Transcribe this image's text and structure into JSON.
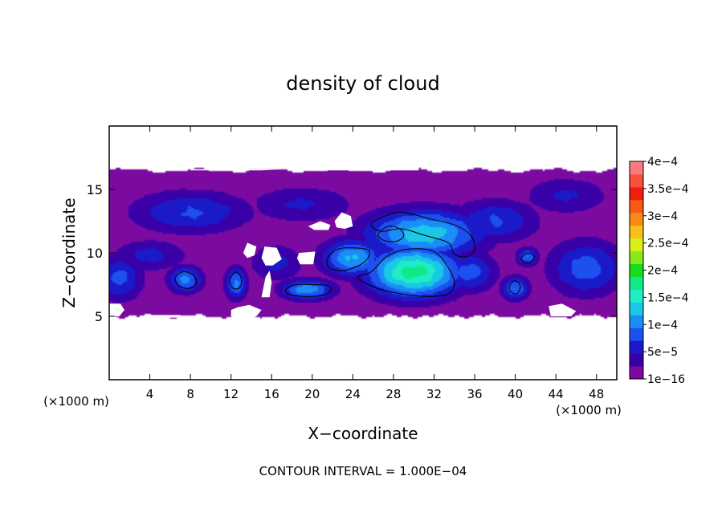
{
  "chart_data": {
    "type": "heatmap",
    "title": "density of cloud",
    "xlabel": "X−coordinate",
    "ylabel": "Z−coordinate",
    "x_unit": "(×1000 m)",
    "x_unit_left": "(×1000 m)",
    "x_unit_right": "(×1000 m)",
    "xlim": [
      0,
      50
    ],
    "ylim": [
      0,
      20
    ],
    "x_ticks": [
      4,
      8,
      12,
      16,
      20,
      24,
      28,
      32,
      36,
      40,
      44,
      48
    ],
    "y_ticks": [
      5,
      10,
      15
    ],
    "footer": "CONTOUR INTERVAL = 1.000E−04",
    "contour_interval": 0.0001,
    "colorbar": {
      "levels": [
        1e-16,
        2.5e-05,
        5e-05,
        7.5e-05,
        0.0001,
        0.000125,
        0.00015,
        0.000175,
        0.0002,
        0.000225,
        0.00025,
        0.000275,
        0.0003,
        0.000325,
        0.00035,
        0.000375,
        0.0004
      ],
      "colors": [
        "#7a0aa0",
        "#3a00a8",
        "#1a1ac8",
        "#1e50ef",
        "#1a8ef6",
        "#1ac8e6",
        "#20ecc6",
        "#10ea86",
        "#1adc1a",
        "#88e81a",
        "#d8f018",
        "#f8c018",
        "#f88a18",
        "#f85a14",
        "#f01e10",
        "#f8503c",
        "#f87c7c"
      ],
      "labels": [
        {
          "value": 1e-16,
          "text": "1e−16"
        },
        {
          "value": 5e-05,
          "text": "5e−5"
        },
        {
          "value": 0.0001,
          "text": "1e−4"
        },
        {
          "value": 0.00015,
          "text": "1.5e−4"
        },
        {
          "value": 0.0002,
          "text": "2e−4"
        },
        {
          "value": 0.00025,
          "text": "2.5e−4"
        },
        {
          "value": 0.0003,
          "text": "3e−4"
        },
        {
          "value": 0.00035,
          "text": "3.5e−4"
        },
        {
          "value": 0.0004,
          "text": "4e−4"
        }
      ]
    },
    "cloud_layer_z": [
      5,
      16.5
    ],
    "features": [
      {
        "x": 30,
        "z": 8.5,
        "rx": 4.4,
        "rz": 1.9,
        "peak": 0.00019
      },
      {
        "x": 31,
        "z": 11.5,
        "rx": 5.5,
        "rz": 1.8,
        "peak": 0.000145
      },
      {
        "x": 24,
        "z": 9.6,
        "rx": 2.9,
        "rz": 1.4,
        "peak": 0.00013
      },
      {
        "x": 7.5,
        "z": 7.9,
        "rx": 1.6,
        "rz": 1.0,
        "peak": 0.00011
      },
      {
        "x": 12.5,
        "z": 7.6,
        "rx": 1.0,
        "rz": 1.2,
        "peak": 0.00011
      },
      {
        "x": 19.5,
        "z": 7.1,
        "rx": 2.5,
        "rz": 0.8,
        "peak": 0.00012
      },
      {
        "x": 40,
        "z": 7.2,
        "rx": 1.3,
        "rz": 0.9,
        "peak": 0.000105
      },
      {
        "x": 41.2,
        "z": 9.7,
        "rx": 1.0,
        "rz": 0.7,
        "peak": 0.0001
      },
      {
        "x": 1,
        "z": 8,
        "rx": 2.2,
        "rz": 1.7,
        "peak": 8.5e-05
      },
      {
        "x": 47,
        "z": 8.8,
        "rx": 3.5,
        "rz": 2.1,
        "peak": 9e-05
      },
      {
        "x": 8,
        "z": 13.2,
        "rx": 5.5,
        "rz": 1.6,
        "peak": 8e-05
      },
      {
        "x": 38,
        "z": 12.5,
        "rx": 4.0,
        "rz": 1.6,
        "peak": 8e-05
      },
      {
        "x": 19,
        "z": 13.8,
        "rx": 5.0,
        "rz": 1.4,
        "peak": 5.5e-05
      },
      {
        "x": 45,
        "z": 14.5,
        "rx": 4.0,
        "rz": 1.4,
        "peak": 5.5e-05
      },
      {
        "x": 4,
        "z": 9.8,
        "rx": 3.5,
        "rz": 1.2,
        "peak": 6e-05
      },
      {
        "x": 35.5,
        "z": 8.5,
        "rx": 2.5,
        "rz": 1.5,
        "peak": 9e-05
      },
      {
        "x": 16.5,
        "z": 9.2,
        "rx": 2.5,
        "rz": 1.4,
        "peak": 6e-05
      }
    ],
    "contours": [
      {
        "level": 0.0001,
        "points": [
          [
            26.2,
            8.8
          ],
          [
            27.5,
            9.8
          ],
          [
            29.5,
            10.3
          ],
          [
            32.0,
            10.1
          ],
          [
            33.5,
            8.7
          ],
          [
            34.0,
            7.5
          ],
          [
            33.2,
            6.7
          ],
          [
            30.5,
            6.6
          ],
          [
            27.3,
            7.0
          ],
          [
            25.5,
            7.5
          ],
          [
            24.5,
            8.1
          ],
          [
            25.6,
            8.4
          ]
        ]
      },
      {
        "level": 0.0001,
        "points": [
          [
            25.8,
            12.3
          ],
          [
            27.5,
            13.0
          ],
          [
            29.0,
            13.2
          ],
          [
            31.5,
            12.7
          ],
          [
            34.0,
            12.2
          ],
          [
            35.6,
            11.4
          ],
          [
            36.0,
            10.3
          ],
          [
            35.2,
            9.7
          ],
          [
            34.0,
            9.9
          ],
          [
            33.4,
            10.8
          ],
          [
            31.0,
            11.4
          ],
          [
            28.8,
            11.9
          ],
          [
            26.8,
            11.7
          ]
        ]
      },
      {
        "level": 0.0001,
        "points": [
          [
            26.5,
            11.5
          ],
          [
            27.5,
            12.1
          ],
          [
            28.6,
            11.9
          ],
          [
            29.0,
            11.3
          ],
          [
            28.2,
            10.9
          ],
          [
            27.0,
            11.0
          ]
        ]
      },
      {
        "level": 0.0001,
        "points": [
          [
            21.5,
            9.6
          ],
          [
            22.5,
            10.3
          ],
          [
            24.0,
            10.4
          ],
          [
            25.6,
            10.2
          ],
          [
            25.3,
            9.4
          ],
          [
            24.0,
            8.8
          ],
          [
            22.6,
            8.6
          ],
          [
            21.6,
            8.9
          ]
        ]
      },
      {
        "level": 0.0001,
        "points": [
          [
            6.5,
            8.0
          ],
          [
            7.2,
            8.5
          ],
          [
            8.2,
            8.3
          ],
          [
            8.6,
            7.6
          ],
          [
            7.8,
            7.2
          ],
          [
            6.9,
            7.4
          ]
        ]
      },
      {
        "level": 0.0001,
        "points": [
          [
            11.9,
            7.9
          ],
          [
            12.5,
            8.5
          ],
          [
            13.0,
            8.0
          ],
          [
            12.9,
            7.3
          ],
          [
            12.2,
            7.2
          ]
        ]
      },
      {
        "level": 0.0001,
        "points": [
          [
            17.5,
            7.2
          ],
          [
            18.5,
            7.5
          ],
          [
            20.0,
            7.5
          ],
          [
            21.6,
            7.4
          ],
          [
            21.7,
            6.9
          ],
          [
            20.5,
            6.6
          ],
          [
            18.6,
            6.6
          ],
          [
            17.5,
            6.8
          ]
        ]
      },
      {
        "level": 0.0001,
        "points": [
          [
            39.4,
            7.3
          ],
          [
            39.9,
            7.8
          ],
          [
            40.5,
            7.4
          ],
          [
            40.2,
            6.8
          ],
          [
            39.6,
            6.9
          ]
        ]
      },
      {
        "level": 0.0001,
        "points": [
          [
            40.6,
            9.6
          ],
          [
            41.2,
            10.0
          ],
          [
            41.9,
            9.7
          ],
          [
            41.4,
            9.2
          ],
          [
            40.8,
            9.3
          ]
        ]
      }
    ],
    "gaps": [
      [
        [
          8.0,
          16.5
        ],
        [
          15.0,
          16.5
        ],
        [
          17.0,
          16.6
        ],
        [
          8.0,
          16.6
        ]
      ],
      [
        [
          30.5,
          16.5
        ],
        [
          30.5,
          17.0
        ],
        [
          20.0,
          17.0
        ],
        [
          20.0,
          16.5
        ]
      ],
      [
        [
          22.2,
          12.5
        ],
        [
          22.9,
          13.2
        ],
        [
          23.8,
          12.9
        ],
        [
          24.0,
          12.1
        ],
        [
          23.2,
          11.9
        ],
        [
          22.4,
          12.0
        ]
      ],
      [
        [
          19.6,
          12.1
        ],
        [
          20.8,
          12.5
        ],
        [
          21.8,
          12.2
        ],
        [
          21.6,
          11.8
        ],
        [
          20.2,
          11.8
        ]
      ],
      [
        [
          13.2,
          10.0
        ],
        [
          13.6,
          10.8
        ],
        [
          14.5,
          10.5
        ],
        [
          14.3,
          9.8
        ],
        [
          13.6,
          9.6
        ]
      ],
      [
        [
          15.0,
          9.6
        ],
        [
          15.3,
          10.5
        ],
        [
          16.5,
          10.4
        ],
        [
          17.0,
          9.5
        ],
        [
          16.1,
          9.0
        ],
        [
          15.4,
          9.0
        ]
      ],
      [
        [
          18.5,
          9.6
        ],
        [
          18.7,
          10.0
        ],
        [
          20.3,
          10.1
        ],
        [
          20.1,
          9.1
        ],
        [
          18.8,
          9.1
        ]
      ],
      [
        [
          15.0,
          6.5
        ],
        [
          15.4,
          8.1
        ],
        [
          15.8,
          8.6
        ],
        [
          16.0,
          7.7
        ],
        [
          15.8,
          6.5
        ]
      ],
      [
        [
          12.0,
          5.5
        ],
        [
          12.6,
          5.7
        ],
        [
          13.8,
          5.9
        ],
        [
          15.0,
          5.5
        ],
        [
          14.5,
          5.0
        ],
        [
          12.0,
          5.0
        ]
      ],
      [
        [
          43.5,
          5.0
        ],
        [
          43.3,
          5.8
        ],
        [
          44.6,
          6.0
        ],
        [
          46.0,
          5.4
        ],
        [
          45.5,
          5.0
        ]
      ],
      [
        [
          0,
          5.0
        ],
        [
          1.0,
          5.0
        ],
        [
          1.5,
          5.5
        ],
        [
          1.1,
          6.0
        ],
        [
          0,
          6.0
        ]
      ],
      [
        [
          3.8,
          4.9
        ],
        [
          3.8,
          5.1
        ],
        [
          7.0,
          5.1
        ],
        [
          7.0,
          4.9
        ]
      ]
    ]
  }
}
